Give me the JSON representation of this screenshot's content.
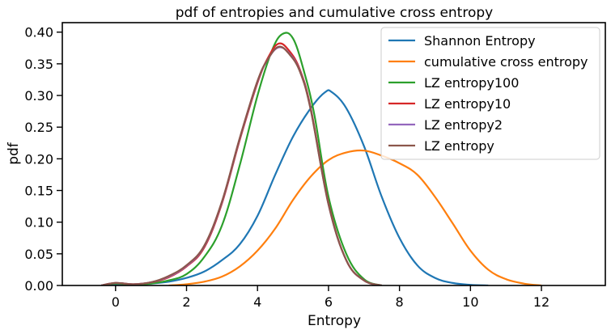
{
  "chart_data": {
    "type": "line",
    "title": "pdf of entropies and cumulative cross entropy",
    "xlabel": "Entropy",
    "ylabel": "pdf",
    "xlim": [
      -1.5,
      13.8
    ],
    "ylim": [
      0,
      0.415
    ],
    "xticks": [
      0,
      2,
      4,
      6,
      8,
      10,
      12
    ],
    "yticks": [
      0.0,
      0.05,
      0.1,
      0.15,
      0.2,
      0.25,
      0.3,
      0.35,
      0.4
    ],
    "xtick_labels": [
      "0",
      "2",
      "4",
      "6",
      "8",
      "10",
      "12"
    ],
    "ytick_labels": [
      "0.00",
      "0.05",
      "0.10",
      "0.15",
      "0.20",
      "0.25",
      "0.30",
      "0.35",
      "0.40"
    ],
    "grid": false,
    "legend_position": "top-right",
    "series": [
      {
        "name": "Shannon Entropy",
        "color": "#1f77b4",
        "x": [
          -0.4,
          0,
          0.5,
          1.0,
          1.5,
          2.0,
          2.5,
          3.0,
          3.5,
          4.0,
          4.5,
          5.0,
          5.5,
          5.9,
          6.1,
          6.5,
          7.0,
          7.5,
          8.0,
          8.5,
          9.0,
          9.5,
          10.0,
          10.5
        ],
        "y": [
          0.0,
          0.002,
          0.001,
          0.003,
          0.006,
          0.012,
          0.022,
          0.04,
          0.065,
          0.11,
          0.175,
          0.235,
          0.28,
          0.305,
          0.305,
          0.28,
          0.22,
          0.14,
          0.075,
          0.032,
          0.012,
          0.004,
          0.001,
          0.0
        ]
      },
      {
        "name": "cumulative cross entropy",
        "color": "#ff7f0e",
        "x": [
          1.5,
          2.0,
          2.5,
          3.0,
          3.5,
          4.0,
          4.5,
          5.0,
          5.5,
          6.0,
          6.5,
          7.0,
          7.5,
          8.0,
          8.5,
          9.0,
          9.5,
          10.0,
          10.5,
          11.0,
          11.5,
          12.0
        ],
        "y": [
          0.0,
          0.002,
          0.006,
          0.014,
          0.03,
          0.055,
          0.09,
          0.135,
          0.172,
          0.198,
          0.21,
          0.213,
          0.205,
          0.193,
          0.175,
          0.14,
          0.098,
          0.055,
          0.025,
          0.01,
          0.003,
          0.0
        ]
      },
      {
        "name": "LZ entropy100",
        "color": "#2ca02c",
        "x": [
          -0.4,
          0,
          0.5,
          1.0,
          1.5,
          2.0,
          2.5,
          3.0,
          3.5,
          4.0,
          4.4,
          4.7,
          5.0,
          5.3,
          5.6,
          6.0,
          6.5,
          7.0,
          7.5
        ],
        "y": [
          0.0,
          0.003,
          0.001,
          0.003,
          0.008,
          0.018,
          0.045,
          0.095,
          0.19,
          0.3,
          0.37,
          0.397,
          0.39,
          0.34,
          0.27,
          0.14,
          0.05,
          0.01,
          0.0
        ]
      },
      {
        "name": "LZ entropy10",
        "color": "#d62728",
        "x": [
          -0.4,
          0,
          0.5,
          1.0,
          1.5,
          2.0,
          2.5,
          3.0,
          3.5,
          4.0,
          4.3,
          4.6,
          4.9,
          5.2,
          5.5,
          6.0,
          6.5,
          7.0,
          7.5
        ],
        "y": [
          0.0,
          0.004,
          0.002,
          0.005,
          0.013,
          0.03,
          0.06,
          0.13,
          0.23,
          0.32,
          0.36,
          0.382,
          0.37,
          0.34,
          0.28,
          0.13,
          0.04,
          0.008,
          0.0
        ]
      },
      {
        "name": "LZ entropy2",
        "color": "#9467bd",
        "x": [
          -0.4,
          0,
          0.5,
          1.0,
          1.5,
          2.0,
          2.5,
          3.0,
          3.5,
          4.0,
          4.3,
          4.6,
          4.9,
          5.2,
          5.5,
          6.0,
          6.5,
          7.0,
          7.5
        ],
        "y": [
          0.0,
          0.004,
          0.002,
          0.005,
          0.014,
          0.031,
          0.062,
          0.132,
          0.232,
          0.322,
          0.358,
          0.376,
          0.366,
          0.338,
          0.278,
          0.128,
          0.04,
          0.008,
          0.0
        ]
      },
      {
        "name": "LZ entropy",
        "color": "#8c564b",
        "x": [
          -0.4,
          0,
          0.5,
          1.0,
          1.5,
          2.0,
          2.5,
          3.0,
          3.5,
          4.0,
          4.3,
          4.6,
          4.9,
          5.2,
          5.5,
          6.0,
          6.5,
          7.0,
          7.5
        ],
        "y": [
          0.0,
          0.004,
          0.002,
          0.005,
          0.015,
          0.032,
          0.063,
          0.133,
          0.233,
          0.323,
          0.358,
          0.377,
          0.365,
          0.337,
          0.277,
          0.128,
          0.04,
          0.008,
          0.0
        ]
      }
    ]
  }
}
